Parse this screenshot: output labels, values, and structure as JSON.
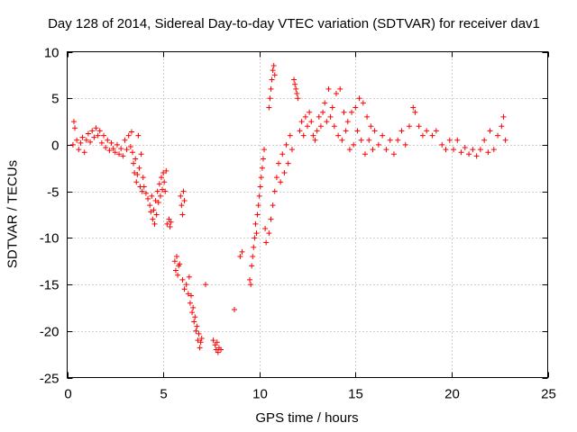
{
  "chart_data": {
    "type": "scatter",
    "title": "Day 128 of 2014, Sidereal Day-to-day VTEC variation (SDTVAR) for receiver dav1",
    "xlabel": "GPS time / hours",
    "ylabel": "SDTVAR / TECUs",
    "xlim": [
      0,
      25
    ],
    "ylim": [
      -25,
      10
    ],
    "xticks": [
      0,
      5,
      10,
      15,
      20,
      25
    ],
    "yticks": [
      -25,
      -20,
      -15,
      -10,
      -5,
      0,
      5,
      10
    ],
    "grid": true,
    "marker": "+",
    "series": [
      {
        "name": "dav1",
        "color": "#ff0000",
        "points": [
          [
            0.3,
            0.0
          ],
          [
            0.35,
            2.5
          ],
          [
            0.4,
            1.8
          ],
          [
            0.5,
            0.5
          ],
          [
            0.6,
            -0.5
          ],
          [
            0.7,
            0.2
          ],
          [
            0.8,
            0.8
          ],
          [
            0.9,
            -0.8
          ],
          [
            1.0,
            0.5
          ],
          [
            1.1,
            1.2
          ],
          [
            1.2,
            0.3
          ],
          [
            1.3,
            1.5
          ],
          [
            1.4,
            0.8
          ],
          [
            1.5,
            1.8
          ],
          [
            1.6,
            1.0
          ],
          [
            1.7,
            1.5
          ],
          [
            1.8,
            0.2
          ],
          [
            1.9,
            1.0
          ],
          [
            2.0,
            -0.3
          ],
          [
            2.1,
            0.5
          ],
          [
            2.2,
            -0.6
          ],
          [
            2.3,
            0.2
          ],
          [
            2.4,
            -0.4
          ],
          [
            2.5,
            -0.8
          ],
          [
            2.6,
            0.0
          ],
          [
            2.7,
            -1.0
          ],
          [
            2.8,
            -0.4
          ],
          [
            2.9,
            -1.2
          ],
          [
            3.0,
            0.5
          ],
          [
            3.1,
            -0.5
          ],
          [
            3.2,
            1.0
          ],
          [
            3.3,
            -0.2
          ],
          [
            3.35,
            1.4
          ],
          [
            3.4,
            -0.8
          ],
          [
            3.45,
            -2.0
          ],
          [
            3.5,
            -3.0
          ],
          [
            3.55,
            -1.5
          ],
          [
            3.6,
            -4.0
          ],
          [
            3.65,
            -3.2
          ],
          [
            3.7,
            1.0
          ],
          [
            3.75,
            -2.5
          ],
          [
            3.8,
            -4.5
          ],
          [
            3.85,
            -1.0
          ],
          [
            3.9,
            -5.0
          ],
          [
            3.95,
            -3.5
          ],
          [
            4.0,
            -4.5
          ],
          [
            4.1,
            -5.2
          ],
          [
            4.2,
            -5.8
          ],
          [
            4.3,
            -6.5
          ],
          [
            4.35,
            -7.2
          ],
          [
            4.4,
            -5.5
          ],
          [
            4.45,
            -8.0
          ],
          [
            4.5,
            -7.0
          ],
          [
            4.55,
            -8.5
          ],
          [
            4.6,
            -6.0
          ],
          [
            4.65,
            -7.5
          ],
          [
            4.7,
            -5.0
          ],
          [
            4.75,
            -6.2
          ],
          [
            4.8,
            -4.2
          ],
          [
            4.85,
            -5.5
          ],
          [
            4.9,
            -3.5
          ],
          [
            4.95,
            -4.8
          ],
          [
            5.0,
            -3.0
          ],
          [
            5.05,
            -4.0
          ],
          [
            5.1,
            -5.0
          ],
          [
            5.15,
            -2.8
          ],
          [
            5.2,
            -8.5
          ],
          [
            5.3,
            -8.0
          ],
          [
            5.35,
            -8.8
          ],
          [
            5.4,
            -8.3
          ],
          [
            5.6,
            -12.5
          ],
          [
            5.65,
            -13.5
          ],
          [
            5.7,
            -12.0
          ],
          [
            5.75,
            -14.0
          ],
          [
            5.8,
            -13.0
          ],
          [
            5.85,
            -12.8
          ],
          [
            5.9,
            -5.5
          ],
          [
            5.95,
            -6.5
          ],
          [
            6.0,
            -7.5
          ],
          [
            6.05,
            -5.0
          ],
          [
            6.1,
            -6.0
          ],
          [
            6.0,
            -14.5
          ],
          [
            6.1,
            -15.5
          ],
          [
            6.2,
            -15.0
          ],
          [
            6.3,
            -16.0
          ],
          [
            6.35,
            -14.2
          ],
          [
            6.4,
            -17.0
          ],
          [
            6.45,
            -16.2
          ],
          [
            6.5,
            -18.0
          ],
          [
            6.55,
            -17.5
          ],
          [
            6.6,
            -19.0
          ],
          [
            6.65,
            -18.5
          ],
          [
            6.7,
            -20.0
          ],
          [
            6.75,
            -19.5
          ],
          [
            6.8,
            -21.0
          ],
          [
            6.85,
            -20.3
          ],
          [
            6.9,
            -21.8
          ],
          [
            6.95,
            -21.2
          ],
          [
            7.0,
            -20.8
          ],
          [
            7.2,
            -15.0
          ],
          [
            7.6,
            -21.0
          ],
          [
            7.7,
            -21.5
          ],
          [
            7.75,
            -22.0
          ],
          [
            7.8,
            -21.2
          ],
          [
            7.85,
            -22.3
          ],
          [
            7.9,
            -21.8
          ],
          [
            8.0,
            -22.0
          ],
          [
            8.7,
            -17.7
          ],
          [
            9.0,
            -12.0
          ],
          [
            9.1,
            -11.5
          ],
          [
            9.5,
            -14.5
          ],
          [
            9.55,
            -15.0
          ],
          [
            9.6,
            -13.0
          ],
          [
            9.65,
            -12.0
          ],
          [
            9.7,
            -11.0
          ],
          [
            9.75,
            -10.0
          ],
          [
            9.8,
            -8.5
          ],
          [
            9.85,
            -9.5
          ],
          [
            9.9,
            -7.5
          ],
          [
            9.95,
            -6.5
          ],
          [
            10.0,
            -5.5
          ],
          [
            10.05,
            -4.5
          ],
          [
            10.1,
            -3.5
          ],
          [
            10.15,
            -2.5
          ],
          [
            10.2,
            -1.5
          ],
          [
            10.25,
            -0.5
          ],
          [
            10.3,
            -9.0
          ],
          [
            10.35,
            -10.5
          ],
          [
            10.5,
            4.0
          ],
          [
            10.55,
            5.0
          ],
          [
            10.6,
            6.0
          ],
          [
            10.65,
            7.0
          ],
          [
            10.7,
            8.0
          ],
          [
            10.75,
            8.5
          ],
          [
            10.8,
            7.5
          ],
          [
            10.5,
            -9.5
          ],
          [
            10.6,
            -8.0
          ],
          [
            10.7,
            -6.5
          ],
          [
            10.8,
            -5.0
          ],
          [
            10.9,
            -3.5
          ],
          [
            11.0,
            -2.0
          ],
          [
            11.1,
            -4.0
          ],
          [
            11.2,
            -1.0
          ],
          [
            11.3,
            -3.0
          ],
          [
            11.4,
            0.0
          ],
          [
            11.5,
            -2.0
          ],
          [
            11.6,
            1.0
          ],
          [
            11.7,
            -0.5
          ],
          [
            11.8,
            7.0
          ],
          [
            11.85,
            6.5
          ],
          [
            11.9,
            6.0
          ],
          [
            11.95,
            5.5
          ],
          [
            12.0,
            5.0
          ],
          [
            12.1,
            1.5
          ],
          [
            12.2,
            2.5
          ],
          [
            12.3,
            1.0
          ],
          [
            12.4,
            3.0
          ],
          [
            12.5,
            2.0
          ],
          [
            12.6,
            3.5
          ],
          [
            12.7,
            2.5
          ],
          [
            12.8,
            1.0
          ],
          [
            12.9,
            0.5
          ],
          [
            13.0,
            1.5
          ],
          [
            13.1,
            3.0
          ],
          [
            13.2,
            2.0
          ],
          [
            13.3,
            3.5
          ],
          [
            13.4,
            4.5
          ],
          [
            13.5,
            2.5
          ],
          [
            13.6,
            6.0
          ],
          [
            13.7,
            3.0
          ],
          [
            13.8,
            4.0
          ],
          [
            13.9,
            2.0
          ],
          [
            14.0,
            5.5
          ],
          [
            14.1,
            1.0
          ],
          [
            14.2,
            6.0
          ],
          [
            14.3,
            0.5
          ],
          [
            14.4,
            3.5
          ],
          [
            14.5,
            1.5
          ],
          [
            14.6,
            2.5
          ],
          [
            14.7,
            -0.5
          ],
          [
            14.8,
            3.5
          ],
          [
            14.9,
            0.0
          ],
          [
            15.0,
            4.0
          ],
          [
            15.1,
            1.5
          ],
          [
            15.2,
            5.0
          ],
          [
            15.3,
            0.5
          ],
          [
            15.4,
            4.5
          ],
          [
            15.5,
            -1.0
          ],
          [
            15.6,
            3.0
          ],
          [
            15.7,
            0.5
          ],
          [
            15.8,
            2.0
          ],
          [
            15.9,
            -0.5
          ],
          [
            16.0,
            1.5
          ],
          [
            16.2,
            0.0
          ],
          [
            16.4,
            1.0
          ],
          [
            16.6,
            -0.5
          ],
          [
            16.8,
            0.5
          ],
          [
            17.0,
            -1.0
          ],
          [
            17.2,
            0.5
          ],
          [
            17.4,
            1.5
          ],
          [
            17.6,
            0.0
          ],
          [
            17.8,
            2.0
          ],
          [
            18.0,
            4.0
          ],
          [
            18.1,
            3.5
          ],
          [
            18.3,
            2.0
          ],
          [
            18.5,
            1.0
          ],
          [
            18.7,
            1.5
          ],
          [
            19.0,
            1.0
          ],
          [
            19.2,
            1.5
          ],
          [
            19.5,
            0.0
          ],
          [
            19.7,
            -0.5
          ],
          [
            19.9,
            0.5
          ],
          [
            20.1,
            -0.5
          ],
          [
            20.3,
            0.5
          ],
          [
            20.5,
            -0.8
          ],
          [
            20.7,
            -0.3
          ],
          [
            20.9,
            -1.0
          ],
          [
            21.1,
            -0.5
          ],
          [
            21.3,
            -1.2
          ],
          [
            21.5,
            -0.5
          ],
          [
            21.7,
            0.5
          ],
          [
            21.9,
            -0.8
          ],
          [
            22.0,
            1.5
          ],
          [
            22.2,
            -0.5
          ],
          [
            22.4,
            1.0
          ],
          [
            22.6,
            2.0
          ],
          [
            22.7,
            3.0
          ],
          [
            22.8,
            0.5
          ]
        ]
      }
    ]
  }
}
